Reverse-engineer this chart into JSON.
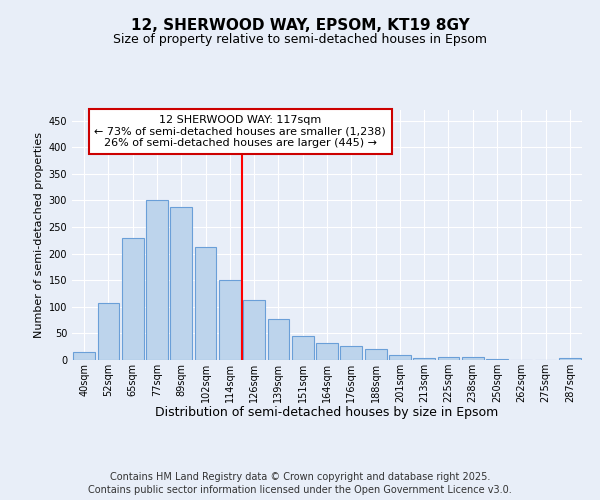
{
  "title1": "12, SHERWOOD WAY, EPSOM, KT19 8GY",
  "title2": "Size of property relative to semi-detached houses in Epsom",
  "xlabel": "Distribution of semi-detached houses by size in Epsom",
  "ylabel": "Number of semi-detached properties",
  "bar_labels": [
    "40sqm",
    "52sqm",
    "65sqm",
    "77sqm",
    "89sqm",
    "102sqm",
    "114sqm",
    "126sqm",
    "139sqm",
    "151sqm",
    "164sqm",
    "176sqm",
    "188sqm",
    "201sqm",
    "213sqm",
    "225sqm",
    "238sqm",
    "250sqm",
    "262sqm",
    "275sqm",
    "287sqm"
  ],
  "bar_values": [
    15,
    108,
    230,
    300,
    287,
    212,
    150,
    112,
    78,
    45,
    32,
    26,
    21,
    9,
    4,
    5,
    5,
    1,
    0,
    0,
    4
  ],
  "bar_color": "#bdd4ec",
  "bar_edge_color": "#6a9fd8",
  "ylim": [
    0,
    470
  ],
  "yticks": [
    0,
    50,
    100,
    150,
    200,
    250,
    300,
    350,
    400,
    450
  ],
  "red_line_x": 6.5,
  "annotation_line1": "12 SHERWOOD WAY: 117sqm",
  "annotation_line2": "← 73% of semi-detached houses are smaller (1,238)",
  "annotation_line3": "26% of semi-detached houses are larger (445) →",
  "annotation_box_color": "#ffffff",
  "annotation_box_edge_color": "#cc0000",
  "footer1": "Contains HM Land Registry data © Crown copyright and database right 2025.",
  "footer2": "Contains public sector information licensed under the Open Government Licence v3.0.",
  "background_color": "#e8eef8",
  "grid_color": "#ffffff",
  "title1_fontsize": 11,
  "title2_fontsize": 9,
  "xlabel_fontsize": 9,
  "ylabel_fontsize": 8,
  "tick_fontsize": 7,
  "annotation_fontsize": 8,
  "footer_fontsize": 7
}
